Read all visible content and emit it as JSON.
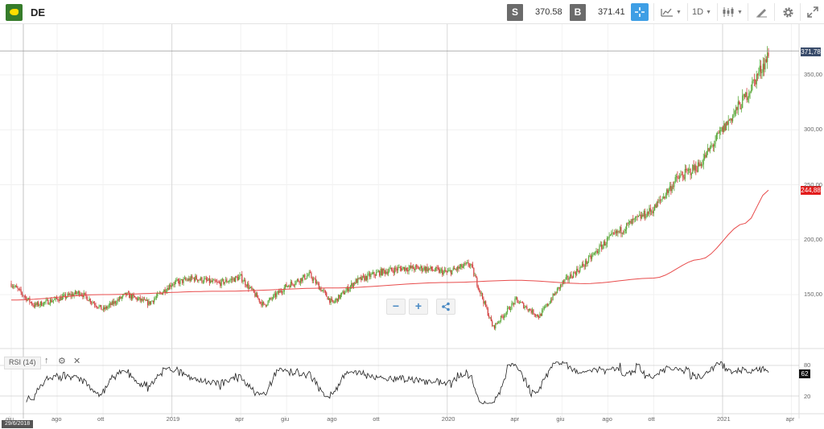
{
  "header": {
    "symbol": "DE",
    "sell_label": "S",
    "sell_price": "370.58",
    "buy_label": "B",
    "buy_price": "371.41",
    "interval_label": "1D",
    "accent_color": "#3e9ee5"
  },
  "chart_data": {
    "type": "candlestick",
    "instrument": "DE",
    "y_axis": {
      "ticks": [
        "150,00",
        "200,00",
        "250,00",
        "300,00",
        "350,00"
      ],
      "range": [
        108,
        388
      ]
    },
    "x_axis": {
      "ticks": [
        "giu",
        "ago",
        "ott",
        "2019",
        "apr",
        "giu",
        "ago",
        "ott",
        "2020",
        "apr",
        "giu",
        "ago",
        "ott",
        "2021",
        "apr"
      ]
    },
    "price_anchors": [
      {
        "date": "2018-06",
        "close": 160
      },
      {
        "date": "2018-07",
        "close": 140
      },
      {
        "date": "2018-08",
        "close": 146
      },
      {
        "date": "2018-09",
        "close": 152
      },
      {
        "date": "2018-10",
        "close": 136
      },
      {
        "date": "2018-11",
        "close": 150
      },
      {
        "date": "2018-12",
        "close": 142
      },
      {
        "date": "2019-01",
        "close": 160
      },
      {
        "date": "2019-02",
        "close": 165
      },
      {
        "date": "2019-03",
        "close": 160
      },
      {
        "date": "2019-04",
        "close": 166
      },
      {
        "date": "2019-05",
        "close": 140
      },
      {
        "date": "2019-06",
        "close": 158
      },
      {
        "date": "2019-07",
        "close": 168
      },
      {
        "date": "2019-08",
        "close": 142
      },
      {
        "date": "2019-09",
        "close": 162
      },
      {
        "date": "2019-10",
        "close": 170
      },
      {
        "date": "2019-11",
        "close": 174
      },
      {
        "date": "2019-12",
        "close": 174
      },
      {
        "date": "2020-01",
        "close": 170
      },
      {
        "date": "2020-02",
        "close": 178
      },
      {
        "date": "2020-03",
        "close": 120
      },
      {
        "date": "2020-04",
        "close": 145
      },
      {
        "date": "2020-05",
        "close": 130
      },
      {
        "date": "2020-06",
        "close": 160
      },
      {
        "date": "2020-07",
        "close": 178
      },
      {
        "date": "2020-08",
        "close": 200
      },
      {
        "date": "2020-09",
        "close": 215
      },
      {
        "date": "2020-10",
        "close": 228
      },
      {
        "date": "2020-11",
        "close": 255
      },
      {
        "date": "2020-12",
        "close": 268
      },
      {
        "date": "2021-01",
        "close": 300
      },
      {
        "date": "2021-02",
        "close": 330
      },
      {
        "date": "2021-03",
        "close": 368
      }
    ],
    "moving_average": {
      "color": "#e84c4c",
      "values": [
        {
          "date": "2018-06",
          "value": 145
        },
        {
          "date": "2018-10",
          "value": 150
        },
        {
          "date": "2019-03",
          "value": 153
        },
        {
          "date": "2019-08",
          "value": 156
        },
        {
          "date": "2020-01",
          "value": 161
        },
        {
          "date": "2020-04",
          "value": 163
        },
        {
          "date": "2020-07",
          "value": 160
        },
        {
          "date": "2020-10",
          "value": 165
        },
        {
          "date": "2020-12",
          "value": 182
        },
        {
          "date": "2021-02",
          "value": 215
        },
        {
          "date": "2021-03",
          "value": 245
        }
      ]
    },
    "last_price_label": "371,78",
    "ma_value_label": "244,88",
    "rsi": {
      "label": "RSI (14)",
      "levels": [
        80,
        20
      ],
      "level_labels": [
        "80",
        "20"
      ],
      "current_label": "62",
      "ylim": [
        0,
        100
      ]
    },
    "crosshair_date_label": "29/6/2018"
  }
}
